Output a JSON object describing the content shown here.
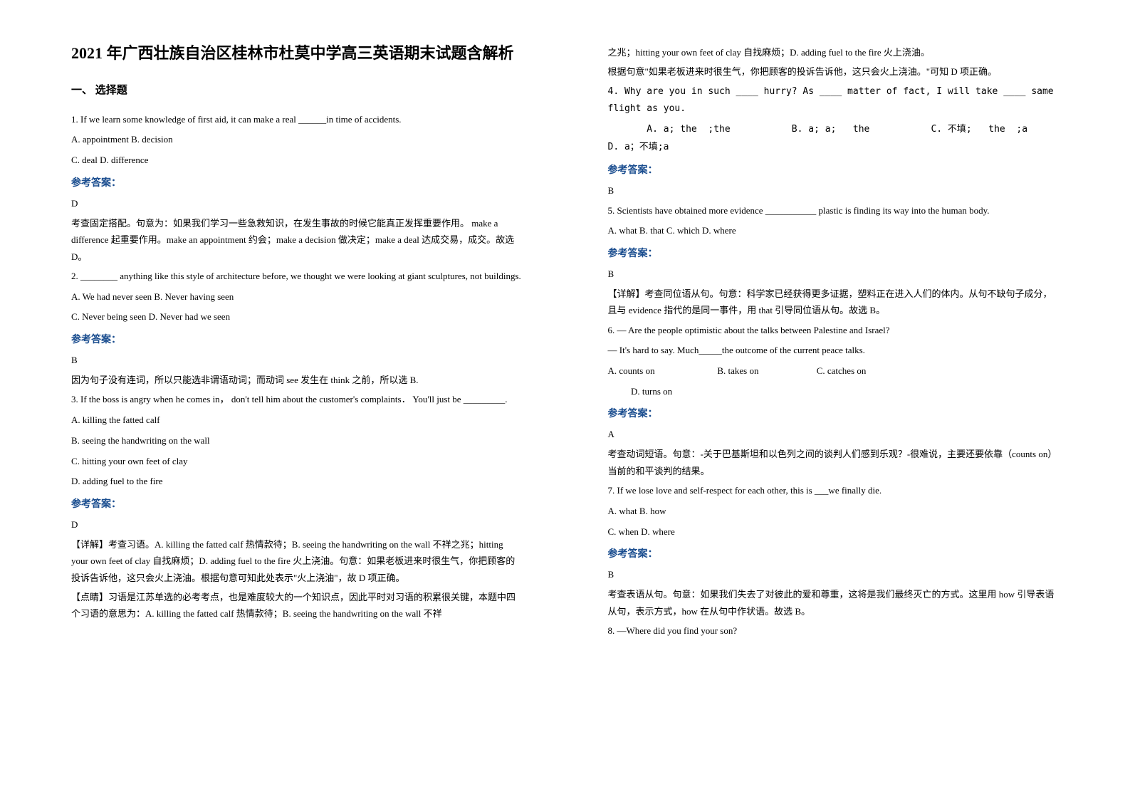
{
  "exam_title": "2021 年广西壮族自治区桂林市杜莫中学高三英语期末试题含解析",
  "section_header": "一、 选择题",
  "answer_label": "参考答案：",
  "colors": {
    "background": "#ffffff",
    "text": "#000000",
    "answer_label": "#1a4d8f"
  },
  "typography": {
    "title_fontsize": 22,
    "section_fontsize": 15,
    "body_fontsize": 13,
    "line_height": 1.9
  },
  "left_column": {
    "q1": {
      "text": "1. If we learn some knowledge of first aid, it can make a real ______in time of accidents.",
      "option_a": "A. appointment    B. decision",
      "option_c": "C. deal    D. difference",
      "answer": "D",
      "explanation": "考查固定搭配。句意为：如果我们学习一些急救知识，在发生事故的时候它能真正发挥重要作用。 make a difference 起重要作用。make an appointment 约会；make a decision 做决定；make a deal 达成交易，成交。故选 D。"
    },
    "q2": {
      "text": "2. ________ anything like this style of architecture before, we thought we were looking at giant sculptures, not buildings.",
      "options_ab": "A. We had never seen       B. Never having seen",
      "options_cd": "C. Never being seen       D. Never had we seen",
      "answer": "B",
      "explanation": "因为句子没有连词，所以只能选非谓语动词；而动词 see 发生在 think 之前，所以选 B."
    },
    "q3": {
      "text": "3. If the boss is angry when he comes in，  don't tell him about the customer's complaints．  You'll just be _________.",
      "opt_a": "A. killing the fatted calf",
      "opt_b": "B. seeing the handwriting on the wall",
      "opt_c": "C. hitting your own feet of clay",
      "opt_d": "D. adding fuel to the fire",
      "answer": "D",
      "explanation1": "【详解】考查习语。A. killing the fatted calf 热情款待；B. seeing the handwriting on the wall 不祥之兆；hitting your own feet of clay 自找麻烦；D. adding fuel to the fire 火上浇油。句意：如果老板进来时很生气，你把顾客的投诉告诉他，这只会火上浇油。根据句意可知此处表示\"火上浇油\"，故 D 项正确。",
      "explanation2": "【点睛】习语是江苏单选的必考考点，也是难度较大的一个知识点，因此平时对习语的积累很关键，本题中四个习语的意思为：A. killing the fatted calf 热情款待；B. seeing the handwriting on the wall 不祥"
    }
  },
  "right_column": {
    "q3_cont": {
      "line1": "之兆；hitting your own feet of clay 自找麻烦；D. adding fuel to the fire 火上浇油。",
      "line2": "根据句意\"如果老板进来时很生气，你把顾客的投诉告诉他，这只会火上浇油。\"可知 D 项正确。"
    },
    "q4": {
      "text": "4. Why are you in such   ____ hurry? As ____   matter of fact, I will take ____   same flight   as you.",
      "options_line1": "       A. a; the  ;the           B. a; a;   the           C. 不填;   the  ;a          D. a；不填;a",
      "answer": "B"
    },
    "q5": {
      "text": "5. Scientists have obtained more evidence ___________ plastic is finding its way into the human body.",
      "options": "A. what B. that  C. which       D. where",
      "answer": "B",
      "explanation": "【详解】考查同位语从句。句意：科学家已经获得更多证据，塑料正在进入人们的体内。从句不缺句子成分，且与 evidence 指代的是同一事件，用 that 引导同位语从句。故选 B。"
    },
    "q6": {
      "text1": "6. — Are the people optimistic about the talks between Palestine and Israel?",
      "text2": "— It's hard to say. Much_____the outcome of the current peace talks.",
      "options1": "A. counts on                           B. takes on                         C. catches on",
      "options2": "          D. turns on",
      "answer": "A",
      "explanation": "考查动词短语。句意：-关于巴基斯坦和以色列之间的谈判人们感到乐观？-很难说，主要还要依靠（counts on）当前的和平谈判的结果。"
    },
    "q7": {
      "text": "7. If we lose love and self-respect for each other, this is ___we finally die.",
      "options_ab": "A. what    B. how",
      "options_cd": "C. when    D. where",
      "answer": "B",
      "explanation": "考查表语从句。句意：如果我们失去了对彼此的爱和尊重，这将是我们最终灭亡的方式。这里用 how 引导表语从句，表示方式，how 在从句中作状语。故选 B。"
    },
    "q8": {
      "text": "8. —Where did you find your son?"
    }
  }
}
